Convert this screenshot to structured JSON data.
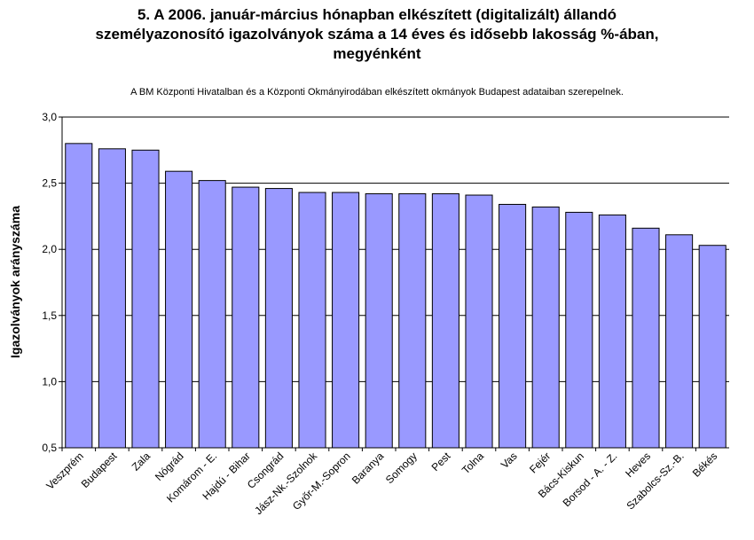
{
  "chart_data": {
    "type": "bar",
    "title_lines": [
      "5. A 2006. január-március hónapban elkészített (digitalizált) állandó",
      "személyazonosító igazolványok száma a 14 éves és idősebb lakosság %-ában,",
      "megyénként"
    ],
    "subtitle": "A BM Központi Hivatalban és a Központi Okmányirodában elkészített  okmányok Budapest adataiban szerepelnek.",
    "ylabel": "Igazolványok arányszáma",
    "xlabel": "",
    "ylim": [
      0.5,
      3.0
    ],
    "yticks": [
      "0,5",
      "1,0",
      "1,5",
      "2,0",
      "2,5",
      "3,0"
    ],
    "categories": [
      "Veszprém",
      "Budapest",
      "Zala",
      "Nógrád",
      "Komárom - E.",
      "Hajdú - Bihar",
      "Csongrád",
      "Jász-Nk.-Szolnok",
      "Győr-M.-Sopron",
      "Baranya",
      "Somogy",
      "Pest",
      "Tolna",
      "Vas",
      "Fejér",
      "Bács-Kiskun",
      "Borsod - A. - Z.",
      "Heves",
      "Szabolcs-Sz.-B.",
      "Békés"
    ],
    "values": [
      2.8,
      2.76,
      2.75,
      2.59,
      2.52,
      2.47,
      2.46,
      2.43,
      2.43,
      2.42,
      2.42,
      2.42,
      2.41,
      2.34,
      2.32,
      2.28,
      2.26,
      2.16,
      2.11,
      2.03
    ],
    "grid": true,
    "colors": {
      "bar_fill": "#9999ff",
      "bar_stroke": "#000000",
      "grid": "#000000"
    }
  }
}
